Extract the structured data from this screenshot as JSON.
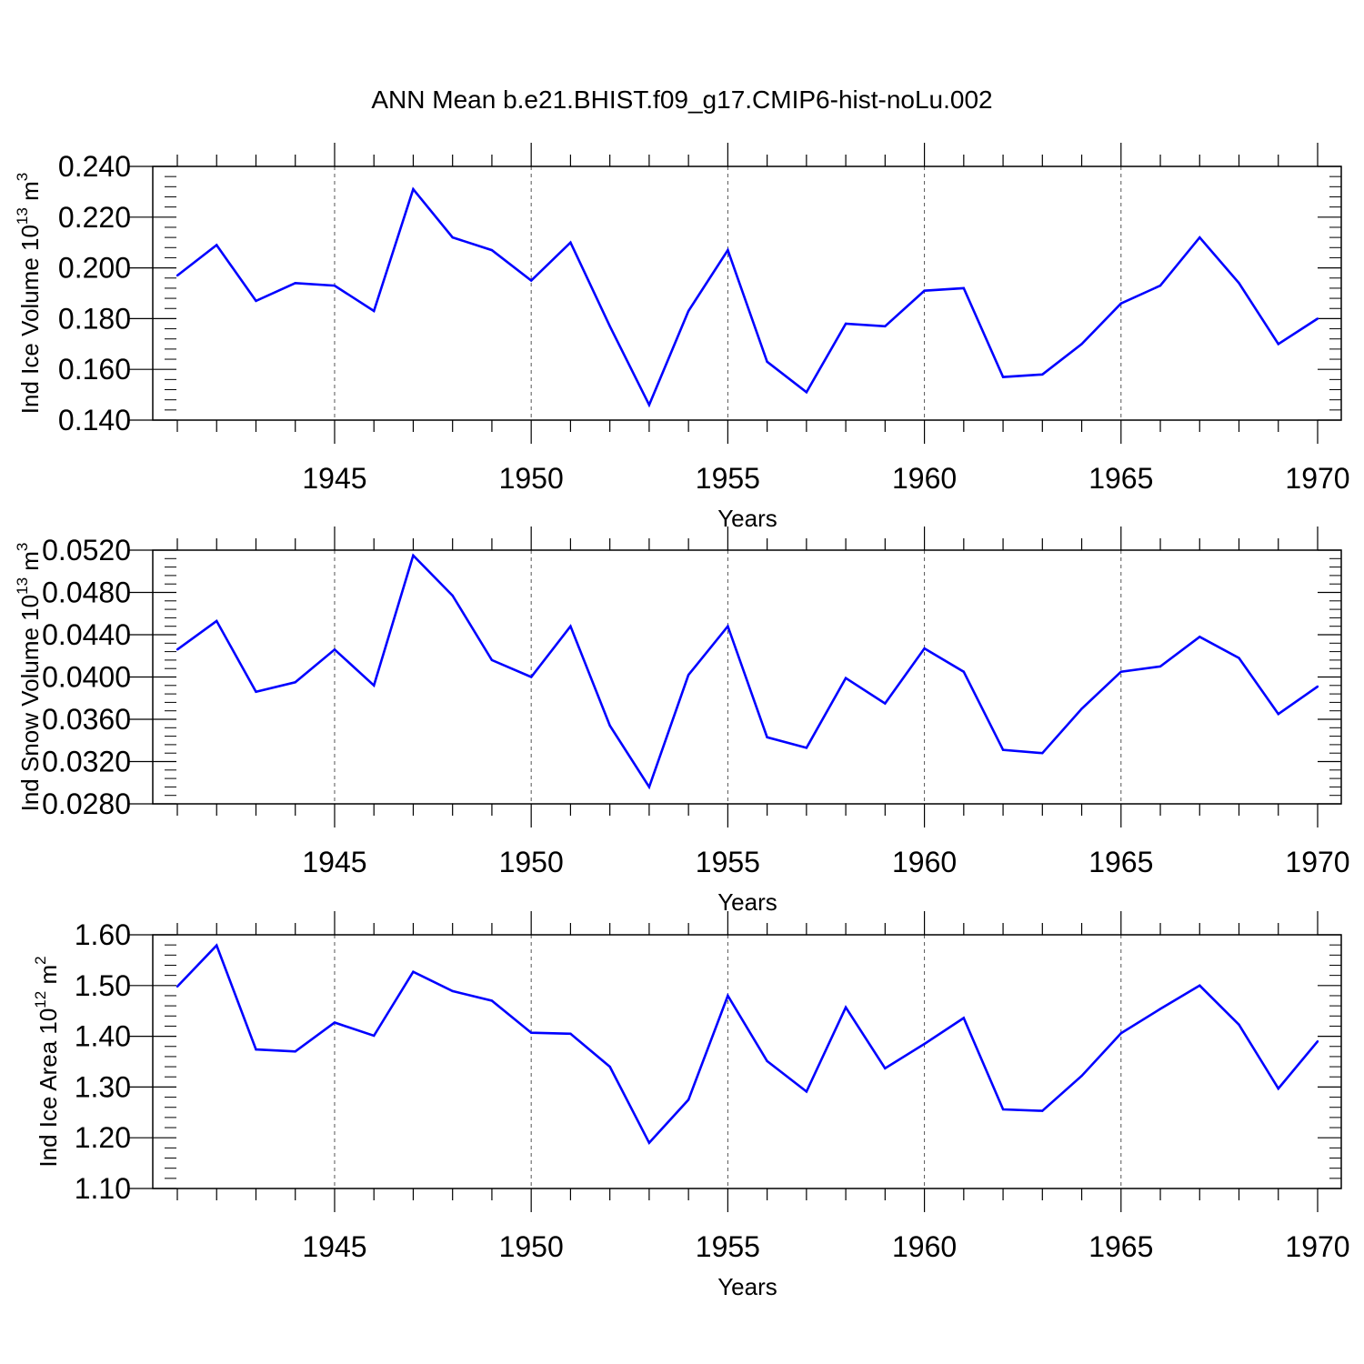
{
  "title": "ANN Mean b.e21.BHIST.f09_g17.CMIP6-hist-noLu.002",
  "line_color": "#0000ff",
  "chart_data": [
    {
      "type": "line",
      "ylabel": "Ind Ice Volume 10",
      "ylabel_exp": "13",
      "ylabel_unit": "m",
      "ylabel_unit_exp": "3",
      "xlabel": "Years",
      "xlim": [
        1941,
        1970
      ],
      "ylim": [
        0.14,
        0.24
      ],
      "yticks": [
        "0.140",
        "0.160",
        "0.180",
        "0.200",
        "0.220",
        "0.240"
      ],
      "xticks": [
        "1945",
        "1950",
        "1955",
        "1960",
        "1965",
        "1970"
      ],
      "grid": "vertical dashed at major x ticks",
      "x": [
        1941,
        1942,
        1943,
        1944,
        1945,
        1946,
        1947,
        1948,
        1949,
        1950,
        1951,
        1952,
        1953,
        1954,
        1955,
        1956,
        1957,
        1958,
        1959,
        1960,
        1961,
        1962,
        1963,
        1964,
        1965,
        1966,
        1967,
        1968,
        1969,
        1970
      ],
      "values": [
        0.197,
        0.209,
        0.187,
        0.194,
        0.193,
        0.183,
        0.231,
        0.212,
        0.207,
        0.195,
        0.21,
        0.177,
        0.146,
        0.183,
        0.207,
        0.163,
        0.151,
        0.178,
        0.177,
        0.191,
        0.192,
        0.157,
        0.158,
        0.17,
        0.186,
        0.193,
        0.212,
        0.194,
        0.17,
        0.18
      ]
    },
    {
      "type": "line",
      "ylabel": "Ind Snow Volume 10",
      "ylabel_exp": "13",
      "ylabel_unit": "m",
      "ylabel_unit_exp": "3",
      "xlabel": "Years",
      "xlim": [
        1941,
        1970
      ],
      "ylim": [
        0.028,
        0.052
      ],
      "yticks": [
        "0.0280",
        "0.0320",
        "0.0360",
        "0.0400",
        "0.0440",
        "0.0480",
        "0.0520"
      ],
      "xticks": [
        "1945",
        "1950",
        "1955",
        "1960",
        "1965",
        "1970"
      ],
      "grid": "vertical dashed at major x ticks",
      "x": [
        1941,
        1942,
        1943,
        1944,
        1945,
        1946,
        1947,
        1948,
        1949,
        1950,
        1951,
        1952,
        1953,
        1954,
        1955,
        1956,
        1957,
        1958,
        1959,
        1960,
        1961,
        1962,
        1963,
        1964,
        1965,
        1966,
        1967,
        1968,
        1969,
        1970
      ],
      "values": [
        0.0426,
        0.0453,
        0.0386,
        0.0395,
        0.0426,
        0.0392,
        0.0515,
        0.0477,
        0.0416,
        0.04,
        0.0448,
        0.0354,
        0.0296,
        0.0402,
        0.0448,
        0.0343,
        0.0333,
        0.0399,
        0.0375,
        0.0427,
        0.0405,
        0.0331,
        0.0328,
        0.037,
        0.0405,
        0.041,
        0.0438,
        0.0418,
        0.0365,
        0.0391
      ]
    },
    {
      "type": "line",
      "ylabel": "Ind Ice Area 10",
      "ylabel_exp": "12",
      "ylabel_unit": "m",
      "ylabel_unit_exp": "2",
      "xlabel": "Years",
      "xlim": [
        1941,
        1970
      ],
      "ylim": [
        1.1,
        1.6
      ],
      "yticks": [
        "1.10",
        "1.20",
        "1.30",
        "1.40",
        "1.50",
        "1.60"
      ],
      "xticks": [
        "1945",
        "1950",
        "1955",
        "1960",
        "1965",
        "1970"
      ],
      "grid": "vertical dashed at major x ticks",
      "x": [
        1941,
        1942,
        1943,
        1944,
        1945,
        1946,
        1947,
        1948,
        1949,
        1950,
        1951,
        1952,
        1953,
        1954,
        1955,
        1956,
        1957,
        1958,
        1959,
        1960,
        1961,
        1962,
        1963,
        1964,
        1965,
        1966,
        1967,
        1968,
        1969,
        1970
      ],
      "values": [
        1.498,
        1.579,
        1.374,
        1.37,
        1.427,
        1.401,
        1.527,
        1.489,
        1.47,
        1.407,
        1.405,
        1.34,
        1.19,
        1.275,
        1.48,
        1.351,
        1.291,
        1.457,
        1.337,
        1.385,
        1.436,
        1.256,
        1.253,
        1.322,
        1.406,
        1.454,
        1.5,
        1.423,
        1.297,
        1.39
      ]
    }
  ]
}
